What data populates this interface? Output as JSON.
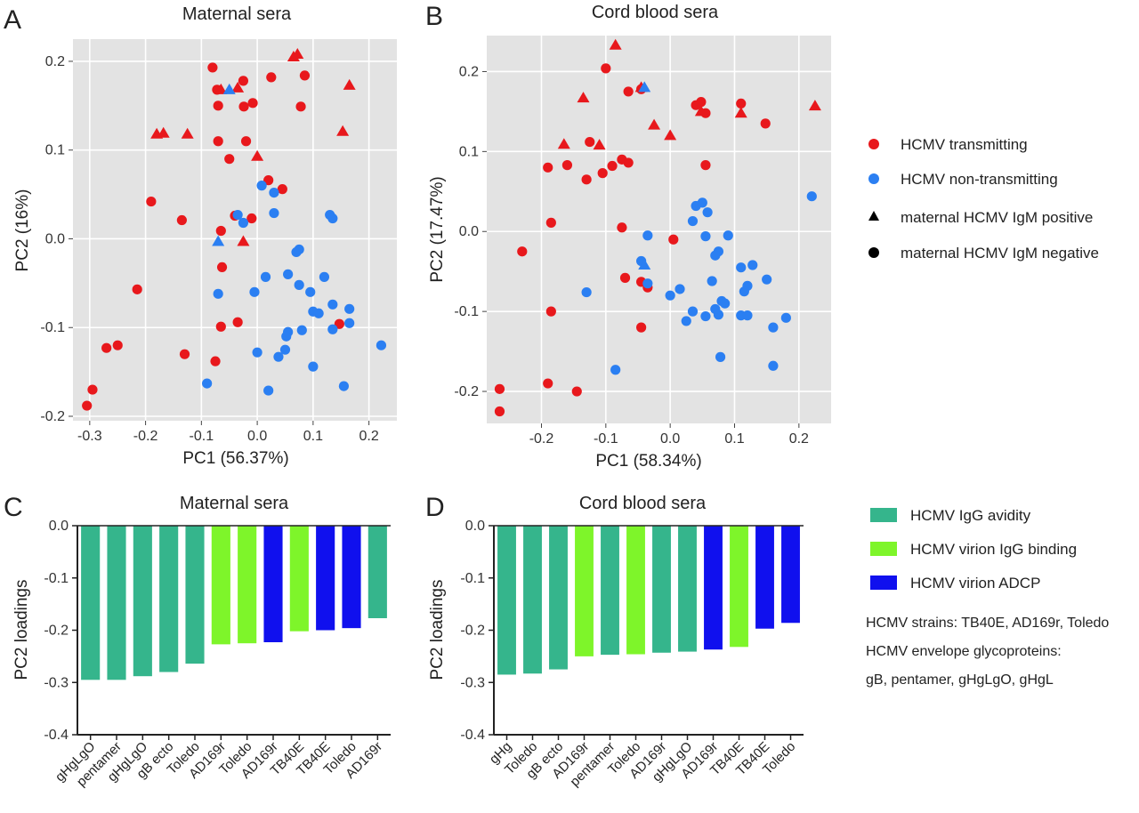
{
  "colors": {
    "transmitting": "#e8181c",
    "non_transmitting": "#2b7ff2",
    "avidity": "#35b58c",
    "binding": "#7ef52a",
    "adcp": "#1010ee",
    "panel_bg": "#e3e3e3"
  },
  "legend_top": {
    "items": [
      {
        "label": "HCMV transmitting",
        "marker": "circle",
        "color": "#e8181c"
      },
      {
        "label": "HCMV non-transmitting",
        "marker": "circle",
        "color": "#2b7ff2"
      },
      {
        "label": "maternal HCMV IgM positive",
        "marker": "triangle",
        "color": "#000000"
      },
      {
        "label": "maternal HCMV IgM negative",
        "marker": "circle",
        "color": "#000000"
      }
    ]
  },
  "legend_bottom": {
    "items": [
      {
        "label": "HCMV IgG avidity",
        "color": "#35b58c"
      },
      {
        "label": "HCMV virion IgG binding",
        "color": "#7ef52a"
      },
      {
        "label": "HCMV virion ADCP",
        "color": "#1010ee"
      }
    ],
    "notes": [
      "HCMV strains: TB40E, AD169r, Toledo",
      "HCMV envelope glycoproteins:",
      "gB, pentamer, gHgLgO, gHgL"
    ]
  },
  "chart_data": [
    {
      "panel": "A",
      "type": "scatter",
      "title": "Maternal sera",
      "xlabel": "PC1 (56.37%)",
      "ylabel": "PC2 (16%)",
      "xlim": [
        -0.33,
        0.25
      ],
      "ylim": [
        -0.205,
        0.225
      ],
      "xticks": [
        -0.3,
        -0.2,
        -0.1,
        0.0,
        0.1,
        0.2
      ],
      "xtick_labels": [
        "-0.3",
        "-0.2",
        "-0.1",
        "0.0",
        "0.1",
        "0.2"
      ],
      "yticks": [
        -0.2,
        -0.1,
        0.0,
        0.1,
        0.2
      ],
      "ytick_labels": [
        "-0.2",
        "-0.1",
        "0.0",
        "0.1",
        "0.2"
      ],
      "grid": true,
      "series": [
        {
          "group": "HCMV transmitting",
          "marker": "circle",
          "color": "#e8181c",
          "points": [
            [
              -0.08,
              0.193
            ],
            [
              -0.072,
              0.168
            ],
            [
              -0.07,
              0.15
            ],
            [
              -0.07,
              0.11
            ],
            [
              -0.025,
              0.178
            ],
            [
              -0.024,
              0.149
            ],
            [
              -0.008,
              0.153
            ],
            [
              0.025,
              0.182
            ],
            [
              0.078,
              0.149
            ],
            [
              0.085,
              0.184
            ],
            [
              -0.02,
              0.11
            ],
            [
              -0.05,
              0.09
            ],
            [
              0.02,
              0.066
            ],
            [
              0.045,
              0.056
            ],
            [
              -0.04,
              0.026
            ],
            [
              -0.19,
              0.042
            ],
            [
              -0.135,
              0.021
            ],
            [
              -0.01,
              0.023
            ],
            [
              -0.065,
              0.009
            ],
            [
              -0.063,
              -0.032
            ],
            [
              -0.215,
              -0.057
            ],
            [
              -0.065,
              -0.099
            ],
            [
              -0.035,
              -0.094
            ],
            [
              -0.25,
              -0.12
            ],
            [
              -0.27,
              -0.123
            ],
            [
              -0.13,
              -0.13
            ],
            [
              -0.075,
              -0.138
            ],
            [
              0.147,
              -0.096
            ],
            [
              -0.295,
              -0.17
            ],
            [
              -0.305,
              -0.188
            ]
          ]
        },
        {
          "group": "HCMV non-transmitting",
          "marker": "circle",
          "color": "#2b7ff2",
          "points": [
            [
              0.008,
              0.06
            ],
            [
              0.03,
              0.052
            ],
            [
              0.03,
              0.029
            ],
            [
              -0.035,
              0.027
            ],
            [
              -0.025,
              0.018
            ],
            [
              0.13,
              0.027
            ],
            [
              0.135,
              0.023
            ],
            [
              -0.07,
              -0.062
            ],
            [
              -0.005,
              -0.06
            ],
            [
              0.015,
              -0.043
            ],
            [
              0.055,
              -0.04
            ],
            [
              0.07,
              -0.015
            ],
            [
              0.075,
              -0.012
            ],
            [
              0.075,
              -0.052
            ],
            [
              0.095,
              -0.06
            ],
            [
              0.12,
              -0.043
            ],
            [
              0.1,
              -0.082
            ],
            [
              0.11,
              -0.084
            ],
            [
              0.135,
              -0.074
            ],
            [
              0.165,
              -0.079
            ],
            [
              0.165,
              -0.095
            ],
            [
              0.135,
              -0.102
            ],
            [
              0.08,
              -0.103
            ],
            [
              0.055,
              -0.105
            ],
            [
              0.052,
              -0.11
            ],
            [
              0.05,
              -0.125
            ],
            [
              0.038,
              -0.133
            ],
            [
              0.0,
              -0.128
            ],
            [
              0.1,
              -0.144
            ],
            [
              -0.09,
              -0.163
            ],
            [
              0.02,
              -0.171
            ],
            [
              0.155,
              -0.166
            ],
            [
              0.222,
              -0.12
            ]
          ]
        },
        {
          "group": "HCMV transmitting",
          "marker": "triangle",
          "color": "#e8181c",
          "points": [
            [
              -0.065,
              0.168
            ],
            [
              -0.035,
              0.17
            ],
            [
              0.065,
              0.205
            ],
            [
              0.072,
              0.208
            ],
            [
              0.165,
              0.173
            ],
            [
              -0.18,
              0.118
            ],
            [
              -0.168,
              0.119
            ],
            [
              -0.125,
              0.118
            ],
            [
              0.153,
              0.121
            ],
            [
              0.0,
              0.093
            ],
            [
              -0.025,
              -0.003
            ]
          ]
        },
        {
          "group": "HCMV non-transmitting",
          "marker": "triangle",
          "color": "#2b7ff2",
          "points": [
            [
              -0.05,
              0.168
            ],
            [
              -0.07,
              -0.003
            ]
          ]
        }
      ]
    },
    {
      "panel": "B",
      "type": "scatter",
      "title": "Cord blood sera",
      "xlabel": "PC1 (58.34%)",
      "ylabel": "PC2 (17.47%)",
      "xlim": [
        -0.285,
        0.25
      ],
      "ylim": [
        -0.24,
        0.245
      ],
      "xticks": [
        -0.2,
        -0.1,
        0.0,
        0.1,
        0.2
      ],
      "xtick_labels": [
        "-0.2",
        "-0.1",
        "0.0",
        "0.1",
        "0.2"
      ],
      "yticks": [
        -0.2,
        -0.1,
        0.0,
        0.1,
        0.2
      ],
      "ytick_labels": [
        "-0.2",
        "-0.1",
        "0.0",
        "0.1",
        "0.2"
      ],
      "grid": true,
      "series": [
        {
          "group": "HCMV transmitting",
          "marker": "circle",
          "color": "#e8181c",
          "points": [
            [
              -0.1,
              0.204
            ],
            [
              -0.065,
              0.175
            ],
            [
              -0.045,
              0.178
            ],
            [
              0.04,
              0.158
            ],
            [
              0.048,
              0.162
            ],
            [
              0.055,
              0.148
            ],
            [
              0.11,
              0.16
            ],
            [
              0.148,
              0.135
            ],
            [
              -0.125,
              0.112
            ],
            [
              -0.19,
              0.08
            ],
            [
              -0.16,
              0.083
            ],
            [
              -0.13,
              0.065
            ],
            [
              -0.105,
              0.073
            ],
            [
              -0.09,
              0.082
            ],
            [
              -0.075,
              0.09
            ],
            [
              -0.065,
              0.086
            ],
            [
              0.055,
              0.083
            ],
            [
              -0.23,
              -0.025
            ],
            [
              -0.185,
              0.011
            ],
            [
              -0.075,
              0.005
            ],
            [
              0.005,
              -0.01
            ],
            [
              -0.07,
              -0.058
            ],
            [
              -0.045,
              -0.063
            ],
            [
              -0.035,
              -0.07
            ],
            [
              -0.185,
              -0.1
            ],
            [
              -0.045,
              -0.12
            ],
            [
              -0.19,
              -0.19
            ],
            [
              -0.145,
              -0.2
            ],
            [
              -0.265,
              -0.197
            ],
            [
              -0.265,
              -0.225
            ]
          ]
        },
        {
          "group": "HCMV non-transmitting",
          "marker": "circle",
          "color": "#2b7ff2",
          "points": [
            [
              0.22,
              0.044
            ],
            [
              0.04,
              0.032
            ],
            [
              0.05,
              0.036
            ],
            [
              0.058,
              0.024
            ],
            [
              0.035,
              0.013
            ],
            [
              0.055,
              -0.006
            ],
            [
              0.09,
              -0.005
            ],
            [
              -0.035,
              -0.005
            ],
            [
              -0.045,
              -0.037
            ],
            [
              0.075,
              -0.025
            ],
            [
              0.07,
              -0.03
            ],
            [
              0.11,
              -0.045
            ],
            [
              0.128,
              -0.042
            ],
            [
              0.15,
              -0.06
            ],
            [
              0.12,
              -0.068
            ],
            [
              0.115,
              -0.075
            ],
            [
              0.065,
              -0.062
            ],
            [
              -0.035,
              -0.065
            ],
            [
              -0.13,
              -0.076
            ],
            [
              0.015,
              -0.072
            ],
            [
              0.0,
              -0.08
            ],
            [
              0.08,
              -0.087
            ],
            [
              0.085,
              -0.09
            ],
            [
              0.035,
              -0.1
            ],
            [
              0.055,
              -0.106
            ],
            [
              0.075,
              -0.104
            ],
            [
              0.07,
              -0.097
            ],
            [
              0.11,
              -0.105
            ],
            [
              0.12,
              -0.105
            ],
            [
              0.18,
              -0.108
            ],
            [
              0.025,
              -0.112
            ],
            [
              0.16,
              -0.12
            ],
            [
              0.078,
              -0.157
            ],
            [
              0.16,
              -0.168
            ],
            [
              -0.085,
              -0.173
            ]
          ]
        },
        {
          "group": "HCMV transmitting",
          "marker": "triangle",
          "color": "#e8181c",
          "points": [
            [
              -0.085,
              0.233
            ],
            [
              -0.135,
              0.167
            ],
            [
              -0.045,
              0.18
            ],
            [
              0.048,
              0.15
            ],
            [
              0.11,
              0.148
            ],
            [
              -0.165,
              0.109
            ],
            [
              -0.11,
              0.108
            ],
            [
              -0.025,
              0.133
            ],
            [
              0.0,
              0.12
            ],
            [
              0.225,
              0.157
            ]
          ]
        },
        {
          "group": "HCMV non-transmitting",
          "marker": "triangle",
          "color": "#2b7ff2",
          "points": [
            [
              -0.04,
              0.18
            ],
            [
              -0.04,
              -0.042
            ]
          ]
        }
      ]
    },
    {
      "panel": "C",
      "type": "bar",
      "title": "Maternal sera",
      "ylabel": "PC2 loadings",
      "ylim": [
        -0.4,
        0.0
      ],
      "yticks": [
        0.0,
        -0.1,
        -0.2,
        -0.3,
        -0.4
      ],
      "ytick_labels": [
        "0.0",
        "-0.1",
        "-0.2",
        "-0.3",
        "-0.4"
      ],
      "categories": [
        "gHgLgO",
        "pentamer",
        "gHgLgO",
        "gB ecto",
        "Toledo",
        "AD169r",
        "Toledo",
        "AD169r",
        "TB40E",
        "TB40E",
        "Toledo",
        "AD169r"
      ],
      "values": [
        -0.295,
        -0.295,
        -0.288,
        -0.28,
        -0.264,
        -0.227,
        -0.225,
        -0.223,
        -0.202,
        -0.2,
        -0.196,
        -0.177
      ],
      "bar_groups": [
        "avidity",
        "avidity",
        "avidity",
        "avidity",
        "avidity",
        "binding",
        "binding",
        "adcp",
        "binding",
        "adcp",
        "adcp",
        "avidity"
      ]
    },
    {
      "panel": "D",
      "type": "bar",
      "title": "Cord blood sera",
      "ylabel": "PC2 loadings",
      "ylim": [
        -0.4,
        0.0
      ],
      "yticks": [
        0.0,
        -0.1,
        -0.2,
        -0.3,
        -0.4
      ],
      "ytick_labels": [
        "0.0",
        "-0.1",
        "-0.2",
        "-0.3",
        "-0.4"
      ],
      "categories": [
        "gHg",
        "Toledo",
        "gB ecto",
        "AD169r",
        "pentamer",
        "Toledo",
        "AD169r",
        "gHgLgO",
        "AD169r",
        "TB40E",
        "TB40E",
        "Toledo"
      ],
      "values": [
        -0.285,
        -0.283,
        -0.275,
        -0.25,
        -0.247,
        -0.246,
        -0.243,
        -0.241,
        -0.237,
        -0.232,
        -0.197,
        -0.186
      ],
      "bar_groups": [
        "avidity",
        "avidity",
        "avidity",
        "binding",
        "avidity",
        "binding",
        "avidity",
        "avidity",
        "adcp",
        "binding",
        "adcp",
        "adcp"
      ]
    }
  ]
}
